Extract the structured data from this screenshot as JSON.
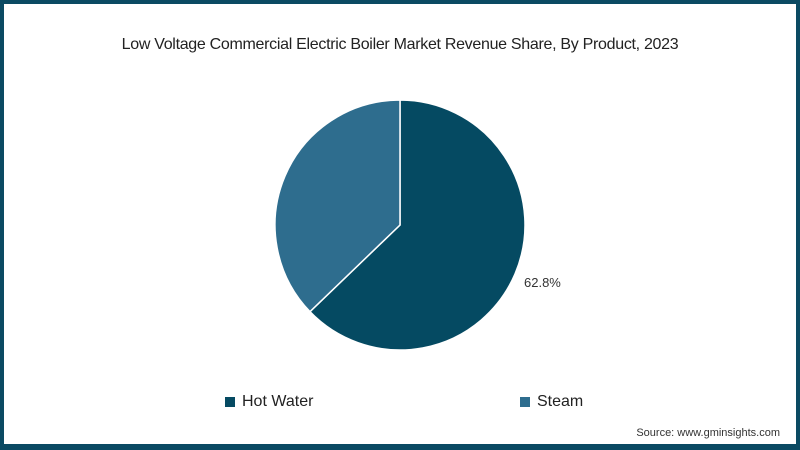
{
  "chart_data": {
    "type": "pie",
    "title": "Low Voltage Commercial Electric Boiler Market Revenue Share, By Product, 2023",
    "categories": [
      "Hot Water",
      "Steam"
    ],
    "values": [
      62.8,
      37.2
    ],
    "colors": [
      "#054a62",
      "#2e6d8e"
    ],
    "data_labels": [
      "62.8%",
      ""
    ],
    "legend_position": "bottom",
    "source": "Source: www.gminsights.com"
  },
  "legend": [
    {
      "label": "Hot Water",
      "color": "#054a62"
    },
    {
      "label": "Steam",
      "color": "#2e6d8e"
    }
  ],
  "labels": {
    "hot_water_pct": "62.8%"
  }
}
